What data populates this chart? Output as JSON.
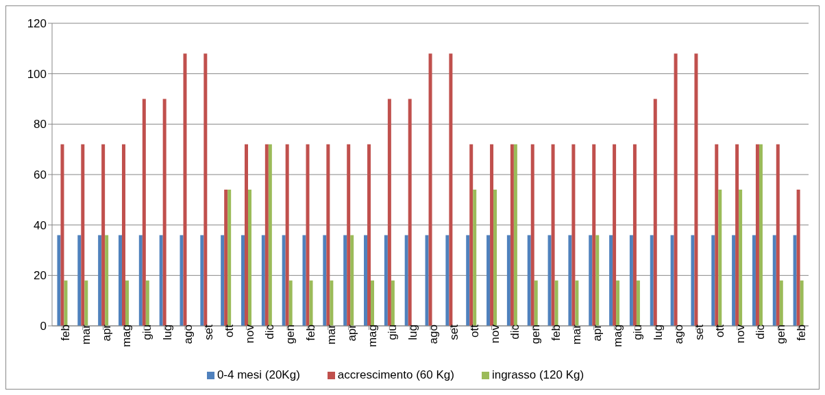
{
  "chart_data": {
    "type": "bar",
    "categories": [
      "feb",
      "mar",
      "apr",
      "mag",
      "giu",
      "lug",
      "ago",
      "set",
      "ott",
      "nov",
      "dic",
      "gen",
      "feb",
      "mar",
      "apr",
      "mag",
      "giu",
      "lug",
      "ago",
      "set",
      "ott",
      "nov",
      "dic",
      "gen",
      "feb",
      "mar",
      "apr",
      "mag",
      "giu",
      "lug",
      "ago",
      "set",
      "ott",
      "nov",
      "dic",
      "gen",
      "feb"
    ],
    "series": [
      {
        "name": "0-4 mesi (20Kg)",
        "color": "#4f81bd",
        "values": [
          36,
          36,
          36,
          36,
          36,
          36,
          36,
          36,
          36,
          36,
          36,
          36,
          36,
          36,
          36,
          36,
          36,
          36,
          36,
          36,
          36,
          36,
          36,
          36,
          36,
          36,
          36,
          36,
          36,
          36,
          36,
          36,
          36,
          36,
          36,
          36,
          36
        ]
      },
      {
        "name": "accrescimento (60 Kg)",
        "color": "#c0504d",
        "values": [
          72,
          72,
          72,
          72,
          90,
          90,
          108,
          108,
          54,
          72,
          72,
          72,
          72,
          72,
          72,
          72,
          90,
          90,
          108,
          108,
          72,
          72,
          72,
          72,
          72,
          72,
          72,
          72,
          72,
          90,
          108,
          108,
          72,
          72,
          72,
          72,
          54
        ]
      },
      {
        "name": "ingrasso (120 Kg)",
        "color": "#9bbb59",
        "values": [
          18,
          18,
          36,
          18,
          18,
          0,
          0,
          0,
          54,
          54,
          72,
          18,
          18,
          18,
          36,
          18,
          18,
          0,
          0,
          0,
          54,
          54,
          72,
          18,
          18,
          18,
          36,
          18,
          18,
          0,
          0,
          0,
          54,
          54,
          72,
          18,
          18
        ]
      }
    ],
    "ylim": [
      0,
      120
    ],
    "yticks": [
      0,
      20,
      40,
      60,
      80,
      100,
      120
    ],
    "grid": "y",
    "legend": "bottom"
  }
}
